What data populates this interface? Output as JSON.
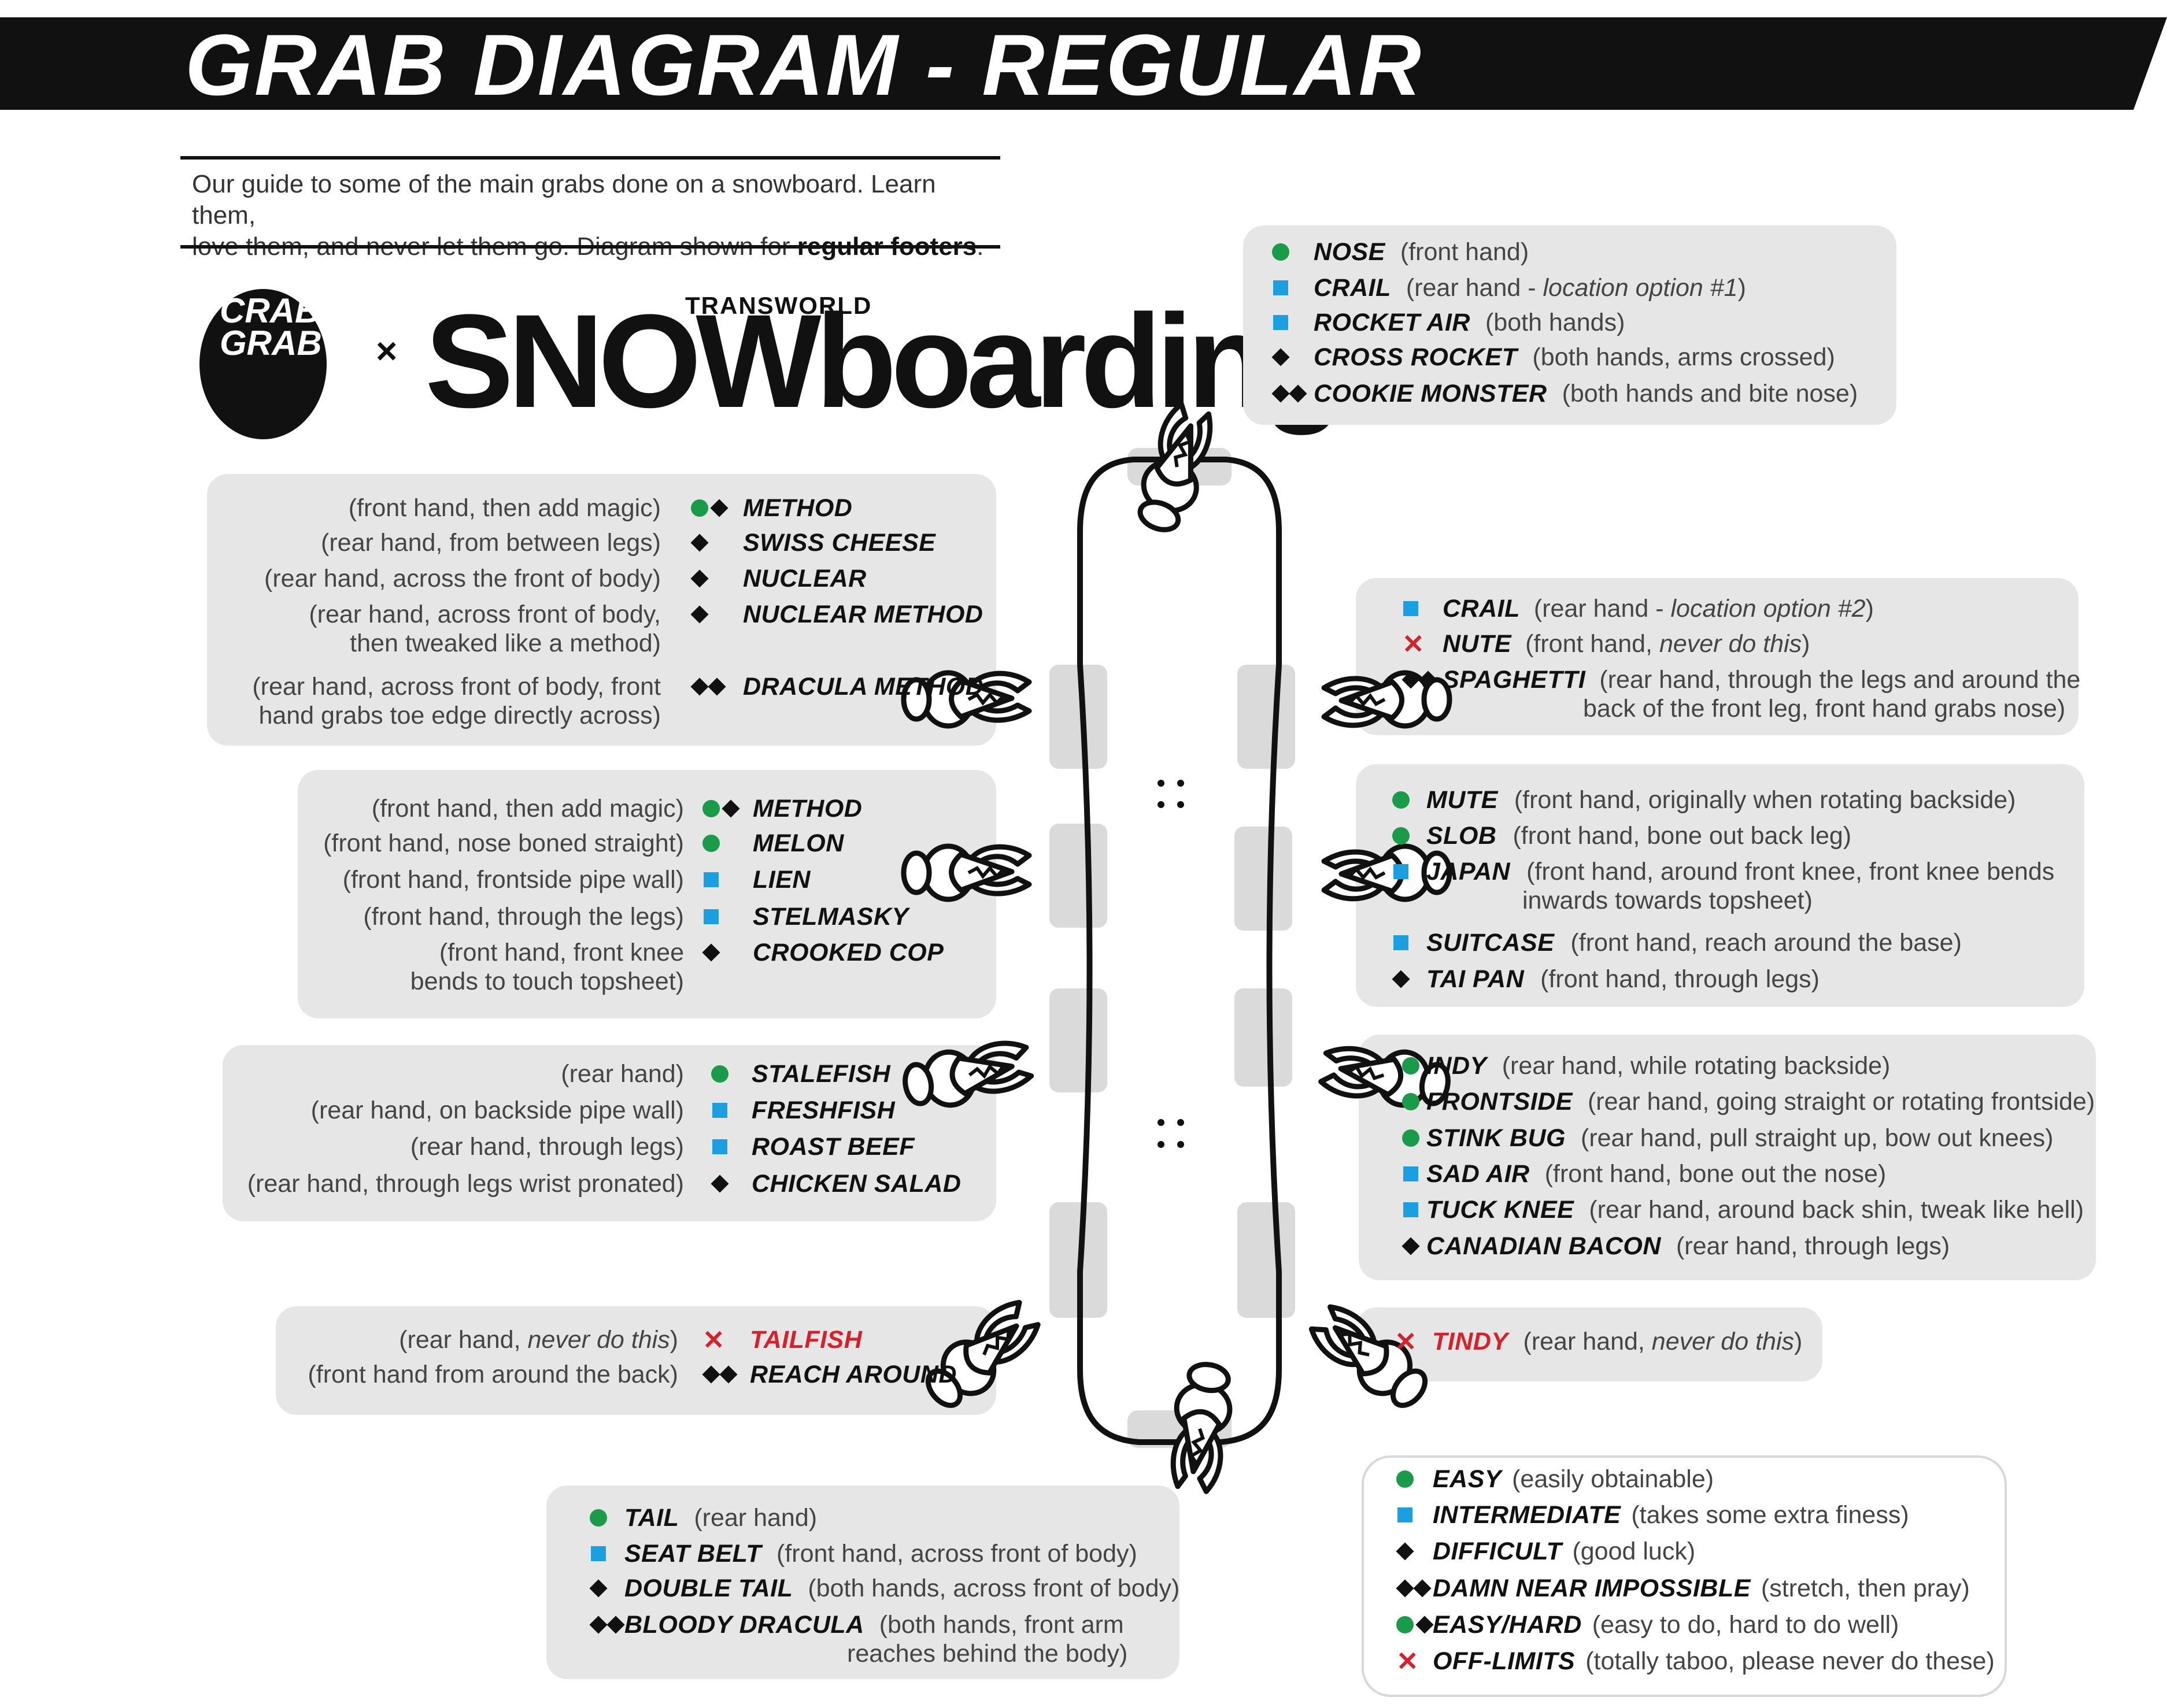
{
  "title": "GRAB DIAGRAM - REGULAR",
  "intro": {
    "line1": "Our guide to some of the main grabs done on a snowboard. Learn them,",
    "line2_pre": "love them, and never let them go. Diagram shown for ",
    "line2_bold": "regular footers",
    "line2_post": "."
  },
  "logos": {
    "crab_grab": "CRAB GRAB",
    "times": "×",
    "transworld": "TRANSWORLD",
    "snowboarding": "SNOWboarding"
  },
  "colors": {
    "easy": "#1a9b4a",
    "intermediate": "#1aa0e0",
    "difficult": "#111111",
    "off_limits": "#d8202a",
    "panel": "#e6e6e7"
  },
  "nose": [
    {
      "icons": [
        "circle"
      ],
      "name": "NOSE",
      "desc": "(front hand)"
    },
    {
      "icons": [
        "square"
      ],
      "name": "CRAIL",
      "desc_pre": "(rear hand - ",
      "desc_em": "location option #1",
      "desc_post": ")"
    },
    {
      "icons": [
        "square"
      ],
      "name": "ROCKET AIR",
      "desc": "(both hands)"
    },
    {
      "icons": [
        "diamond"
      ],
      "name": "CROSS ROCKET",
      "desc": "(both hands, arms crossed)"
    },
    {
      "icons": [
        "diamond",
        "diamond"
      ],
      "name": "COOKIE MONSTER",
      "desc": "(both hands and bite nose)"
    }
  ],
  "left_top": [
    {
      "icons": [
        "circle",
        "diamond"
      ],
      "name": "METHOD",
      "desc": "(front hand, then add magic)"
    },
    {
      "icons": [
        "diamond"
      ],
      "name": "SWISS CHEESE",
      "desc": "(rear hand, from between legs)"
    },
    {
      "icons": [
        "diamond"
      ],
      "name": "NUCLEAR",
      "desc": "(rear hand, across the front of body)"
    },
    {
      "icons": [
        "diamond"
      ],
      "name": "NUCLEAR METHOD",
      "desc": "(rear hand, across front of body,",
      "desc2": "then tweaked like a method)"
    },
    {
      "icons": [
        "diamond",
        "diamond"
      ],
      "name": "DRACULA METHOD",
      "desc": "(rear hand, across front of body, front",
      "desc2": "hand grabs toe edge directly across)"
    }
  ],
  "left_mid": [
    {
      "icons": [
        "circle",
        "diamond"
      ],
      "name": "METHOD",
      "desc": "(front hand, then add magic)"
    },
    {
      "icons": [
        "circle"
      ],
      "name": "MELON",
      "desc": "(front hand, nose boned straight)"
    },
    {
      "icons": [
        "square"
      ],
      "name": "LIEN",
      "desc": "(front hand, frontside pipe wall)"
    },
    {
      "icons": [
        "square"
      ],
      "name": "STELMASKY",
      "desc": "(front hand, through the legs)"
    },
    {
      "icons": [
        "diamond"
      ],
      "name": "CROOKED COP",
      "desc": "(front hand, front knee",
      "desc2": "bends to touch topsheet)"
    }
  ],
  "left_low": [
    {
      "icons": [
        "circle"
      ],
      "name": "STALEFISH",
      "desc": "(rear hand)"
    },
    {
      "icons": [
        "square"
      ],
      "name": "FRESHFISH",
      "desc": "(rear hand, on backside pipe wall)"
    },
    {
      "icons": [
        "square"
      ],
      "name": "ROAST BEEF",
      "desc": "(rear hand, through legs)"
    },
    {
      "icons": [
        "diamond"
      ],
      "name": "CHICKEN SALAD",
      "desc": "(rear hand, through legs wrist pronated)"
    }
  ],
  "left_tail": [
    {
      "icons": [
        "x"
      ],
      "name": "TAILFISH",
      "red": true,
      "desc_pre": "(rear hand, ",
      "desc_em": "never do this",
      "desc_post": ")"
    },
    {
      "icons": [
        "diamond",
        "diamond"
      ],
      "name": "REACH AROUND",
      "desc": "(front hand from around the back)"
    }
  ],
  "right_top": [
    {
      "icons": [
        "square"
      ],
      "name": "CRAIL",
      "desc_pre": "(rear hand - ",
      "desc_em": "location option #2",
      "desc_post": ")"
    },
    {
      "icons": [
        "x"
      ],
      "name": "NUTE",
      "desc_pre": "(front hand, ",
      "desc_em": "never do this",
      "desc_post": ")"
    },
    {
      "icons": [
        "diamond",
        "diamond"
      ],
      "name": "SPAGHETTI",
      "desc": "(rear hand, through the legs and around the",
      "desc2": "back of the front leg, front hand grabs nose)"
    }
  ],
  "right_mid": [
    {
      "icons": [
        "circle"
      ],
      "name": "MUTE",
      "desc": "(front hand, originally when rotating backside)"
    },
    {
      "icons": [
        "circle"
      ],
      "name": "SLOB",
      "desc": "(front hand, bone out back leg)"
    },
    {
      "icons": [
        "square"
      ],
      "name": "JAPAN",
      "desc": "(front hand, around front knee, front knee bends",
      "desc2": "inwards towards topsheet)"
    },
    {
      "icons": [
        "square"
      ],
      "name": "SUITCASE",
      "desc": "(front hand, reach around the base)"
    },
    {
      "icons": [
        "diamond"
      ],
      "name": "TAI PAN",
      "desc": "(front hand, through legs)"
    }
  ],
  "right_low": [
    {
      "icons": [
        "circle"
      ],
      "name": "INDY",
      "desc": "(rear hand, while rotating backside)"
    },
    {
      "icons": [
        "circle"
      ],
      "name": "FRONTSIDE",
      "desc": "(rear hand, going straight or rotating frontside)"
    },
    {
      "icons": [
        "circle"
      ],
      "name": "STINK BUG",
      "desc": "(rear hand, pull straight up, bow out knees)"
    },
    {
      "icons": [
        "square"
      ],
      "name": "SAD AIR",
      "desc": "(front hand, bone out the nose)"
    },
    {
      "icons": [
        "square"
      ],
      "name": "TUCK KNEE",
      "desc": "(rear hand, around back shin, tweak like hell)"
    },
    {
      "icons": [
        "diamond"
      ],
      "name": "CANADIAN BACON",
      "desc": "(rear hand, through legs)"
    }
  ],
  "right_tail": [
    {
      "icons": [
        "x"
      ],
      "name": "TINDY",
      "red": true,
      "desc_pre": "(rear hand, ",
      "desc_em": "never do this",
      "desc_post": ")"
    }
  ],
  "tail": [
    {
      "icons": [
        "circle"
      ],
      "name": "TAIL",
      "desc": "(rear hand)"
    },
    {
      "icons": [
        "square"
      ],
      "name": "SEAT BELT",
      "desc": "(front hand, across front of body)"
    },
    {
      "icons": [
        "diamond"
      ],
      "name": "DOUBLE TAIL",
      "desc": "(both hands, across front of body)"
    },
    {
      "icons": [
        "diamond",
        "diamond"
      ],
      "name": "BLOODY DRACULA",
      "desc": "(both hands, front arm",
      "desc2": "reaches behind the body)"
    }
  ],
  "legend": [
    {
      "icons": [
        "circle"
      ],
      "name": "EASY",
      "desc": "(easily obtainable)"
    },
    {
      "icons": [
        "square"
      ],
      "name": "INTERMEDIATE",
      "desc": "(takes some extra finess)"
    },
    {
      "icons": [
        "diamond"
      ],
      "name": "DIFFICULT",
      "desc": "(good luck)"
    },
    {
      "icons": [
        "diamond",
        "diamond"
      ],
      "name": "DAMN NEAR IMPOSSIBLE",
      "desc": "(stretch, then pray)"
    },
    {
      "icons": [
        "circle",
        "diamond"
      ],
      "name": "EASY/HARD",
      "desc": "(easy to do, hard to do well)"
    },
    {
      "icons": [
        "x"
      ],
      "name": "OFF-LIMITS",
      "desc": "(totally taboo, please never do these)"
    }
  ]
}
